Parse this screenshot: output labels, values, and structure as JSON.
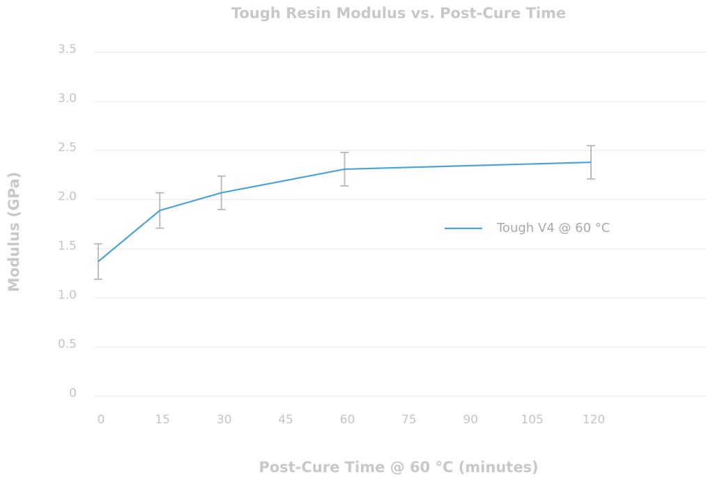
{
  "chart_data": {
    "type": "line",
    "title": "Tough Resin Modulus vs. Post-Cure Time",
    "x_label": "Post-Cure Time @ 60 °C (minutes)",
    "y_label": "Modulus (GPa)",
    "x": [
      0,
      15,
      30,
      60,
      120
    ],
    "series": [
      {
        "name": "Tough V4 @ 60 °C",
        "color": "#4aa3d6",
        "values": [
          1.37,
          1.89,
          2.07,
          2.31,
          2.38
        ],
        "errors": [
          0.18,
          0.18,
          0.17,
          0.17,
          0.17
        ]
      }
    ],
    "xlim": [
      -1,
      148
    ],
    "xticks": [
      0,
      15,
      30,
      45,
      60,
      75,
      90,
      105,
      120
    ],
    "ylim": [
      0,
      3.5
    ],
    "yticks": [
      0,
      0.5,
      {
        "value": 1,
        "label": "1.0"
      },
      1.5,
      {
        "value": 2,
        "label": "2.0"
      },
      2.5,
      {
        "value": 3,
        "label": "3.0"
      },
      3.5
    ],
    "grid": true,
    "legend": "right"
  }
}
